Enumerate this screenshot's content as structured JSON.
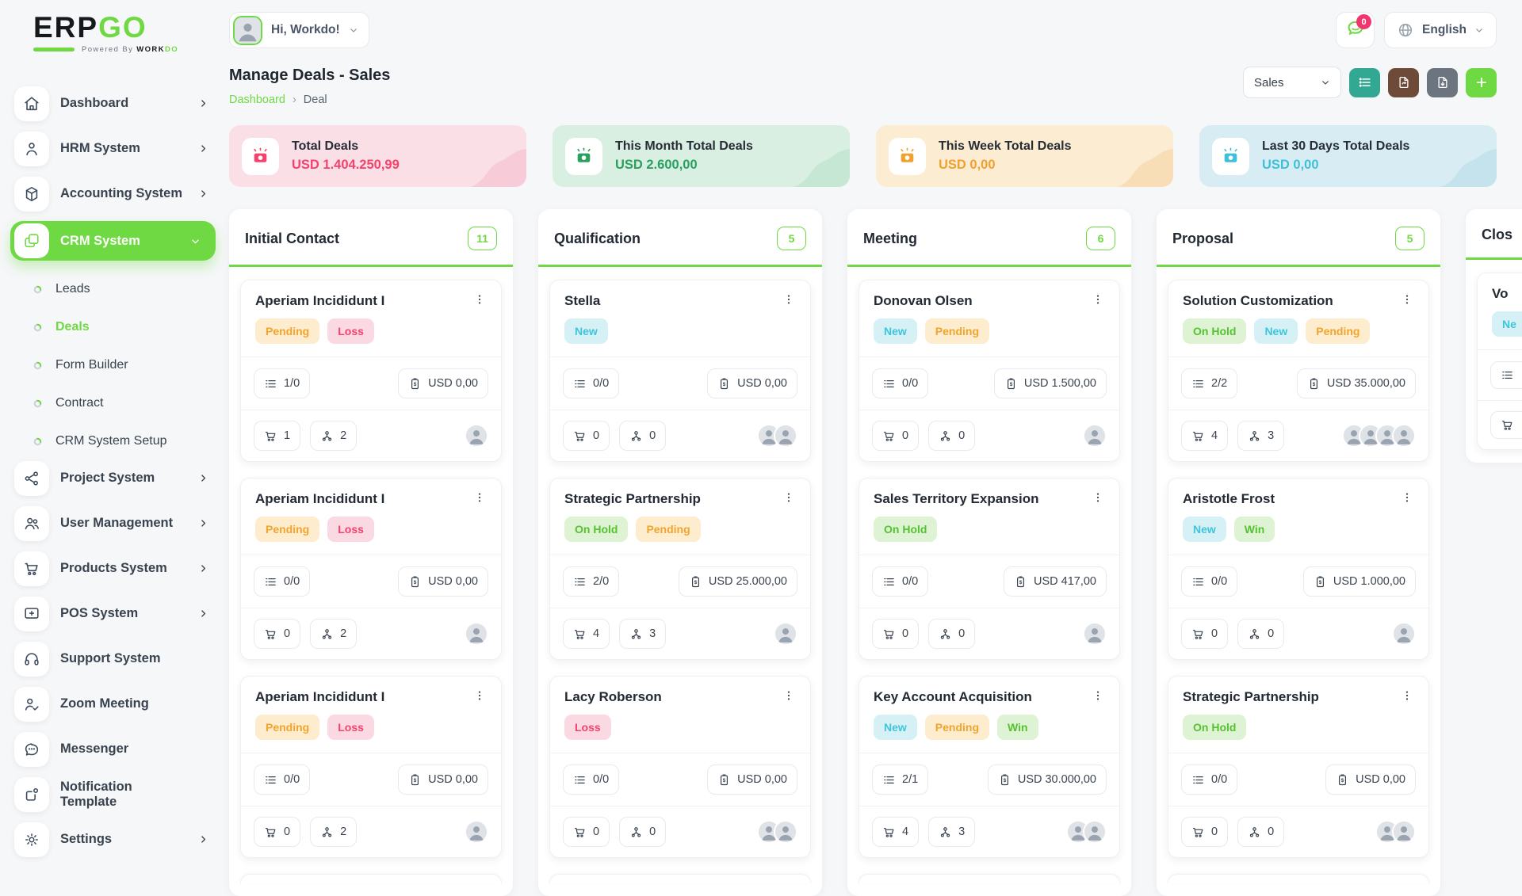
{
  "brand": {
    "name_dark": "ERP",
    "name_green": "GO",
    "tagline_prefix": "Powered By",
    "tagline_dark": "WORK",
    "tagline_green": "DO"
  },
  "topbar": {
    "greeting": "Hi, Workdo!",
    "notification_badge": "0",
    "language": "English"
  },
  "page": {
    "title": "Manage Deals - Sales",
    "breadcrumb": [
      "Dashboard",
      "Deal"
    ],
    "pipeline_select": "Sales"
  },
  "colors": {
    "brand_green": "#6fd943",
    "badge_pink": "#f1356e",
    "toolbar": [
      "#32a791",
      "#6e4a39",
      "#6c7480",
      "#6fd943"
    ]
  },
  "sidebar": {
    "items": [
      {
        "label": "Dashboard",
        "icon": "home-icon",
        "chevron": "right"
      },
      {
        "label": "HRM System",
        "icon": "user-icon",
        "chevron": "right"
      },
      {
        "label": "Accounting System",
        "icon": "cube-icon",
        "chevron": "right"
      },
      {
        "label": "CRM System",
        "icon": "crm-icon",
        "chevron": "down",
        "active": true
      },
      {
        "label": "Leads",
        "type": "sub"
      },
      {
        "label": "Deals",
        "type": "sub",
        "active": true
      },
      {
        "label": "Form Builder",
        "type": "sub"
      },
      {
        "label": "Contract",
        "type": "sub"
      },
      {
        "label": "CRM System Setup",
        "type": "sub"
      },
      {
        "label": "Project System",
        "icon": "share-icon",
        "chevron": "right"
      },
      {
        "label": "User Management",
        "icon": "users-icon",
        "chevron": "right"
      },
      {
        "label": "Products System",
        "icon": "cart-icon",
        "chevron": "right"
      },
      {
        "label": "POS System",
        "icon": "pos-icon",
        "chevron": "right"
      },
      {
        "label": "Support System",
        "icon": "headset-icon"
      },
      {
        "label": "Zoom Meeting",
        "icon": "user-check-icon"
      },
      {
        "label": "Messenger",
        "icon": "chat-icon"
      },
      {
        "label": "Notification Template",
        "icon": "notification-template-icon"
      },
      {
        "label": "Settings",
        "icon": "gear-icon",
        "chevron": "right"
      }
    ]
  },
  "stats": [
    {
      "label": "Total Deals",
      "value": "USD 1.404.250,99",
      "bg": "#fbdfe7",
      "accent": "#f5426c",
      "wave": "#f8cbd8"
    },
    {
      "label": "This Month Total Deals",
      "value": "USD 2.600,00",
      "bg": "#d9efe2",
      "accent": "#29a05f",
      "wave": "#c6e7d4"
    },
    {
      "label": "This Week Total Deals",
      "value": "USD 0,00",
      "bg": "#fcecd2",
      "accent": "#f0a12f",
      "wave": "#f8deb7"
    },
    {
      "label": "Last 30 Days Total Deals",
      "value": "USD 0,00",
      "bg": "#d8edf3",
      "accent": "#3fc0d9",
      "wave": "#c4e3ec"
    }
  ],
  "kanban": {
    "columns": [
      {
        "title": "Initial Contact",
        "count": "11",
        "partial": true,
        "cards": [
          {
            "title": "Aperiam Incididunt I",
            "tags": [
              {
                "label": "Pending",
                "type": "pending"
              },
              {
                "label": "Loss",
                "type": "loss"
              }
            ],
            "tasks": "1/0",
            "amount": "USD 0,00",
            "products": "1",
            "users": "2",
            "avatars": 1
          },
          {
            "title": "Aperiam Incididunt I",
            "tags": [
              {
                "label": "Pending",
                "type": "pending"
              },
              {
                "label": "Loss",
                "type": "loss"
              }
            ],
            "tasks": "0/0",
            "amount": "USD 0,00",
            "products": "0",
            "users": "2",
            "avatars": 1
          },
          {
            "title": "Aperiam Incididunt I",
            "tags": [
              {
                "label": "Pending",
                "type": "pending"
              },
              {
                "label": "Loss",
                "type": "loss"
              }
            ],
            "tasks": "0/0",
            "amount": "USD 0,00",
            "products": "0",
            "users": "2",
            "avatars": 1
          }
        ]
      },
      {
        "title": "Qualification",
        "count": "5",
        "partial": true,
        "cards": [
          {
            "title": "Stella",
            "tags": [
              {
                "label": "New",
                "type": "new"
              }
            ],
            "tasks": "0/0",
            "amount": "USD 0,00",
            "products": "0",
            "users": "0",
            "avatars": 2
          },
          {
            "title": "Strategic Partnership",
            "tags": [
              {
                "label": "On Hold",
                "type": "onhold"
              },
              {
                "label": "Pending",
                "type": "pending"
              }
            ],
            "tasks": "2/0",
            "amount": "USD 25.000,00",
            "products": "4",
            "users": "3",
            "avatars": 1
          },
          {
            "title": "Lacy Roberson",
            "tags": [
              {
                "label": "Loss",
                "type": "loss"
              }
            ],
            "tasks": "0/0",
            "amount": "USD 0,00",
            "products": "0",
            "users": "0",
            "avatars": 2
          }
        ]
      },
      {
        "title": "Meeting",
        "count": "6",
        "partial": true,
        "cards": [
          {
            "title": "Donovan Olsen",
            "tags": [
              {
                "label": "New",
                "type": "new"
              },
              {
                "label": "Pending",
                "type": "pending"
              }
            ],
            "tasks": "0/0",
            "amount": "USD 1.500,00",
            "products": "0",
            "users": "0",
            "avatars": 1
          },
          {
            "title": "Sales Territory Expansion",
            "tags": [
              {
                "label": "On Hold",
                "type": "onhold"
              }
            ],
            "tasks": "0/0",
            "amount": "USD 417,00",
            "products": "0",
            "users": "0",
            "avatars": 1
          },
          {
            "title": "Key Account Acquisition",
            "tags": [
              {
                "label": "New",
                "type": "new"
              },
              {
                "label": "Pending",
                "type": "pending"
              },
              {
                "label": "Win",
                "type": "win"
              }
            ],
            "tasks": "2/1",
            "amount": "USD 30.000,00",
            "products": "4",
            "users": "3",
            "avatars": 2
          }
        ]
      },
      {
        "title": "Proposal",
        "count": "5",
        "partial": true,
        "cards": [
          {
            "title": "Solution Customization",
            "tags": [
              {
                "label": "On Hold",
                "type": "onhold"
              },
              {
                "label": "New",
                "type": "new"
              },
              {
                "label": "Pending",
                "type": "pending"
              }
            ],
            "tasks": "2/2",
            "amount": "USD 35.000,00",
            "products": "4",
            "users": "3",
            "avatars": 4
          },
          {
            "title": "Aristotle Frost",
            "tags": [
              {
                "label": "New",
                "type": "new"
              },
              {
                "label": "Win",
                "type": "win"
              }
            ],
            "tasks": "0/0",
            "amount": "USD 1.000,00",
            "products": "0",
            "users": "0",
            "avatars": 1
          },
          {
            "title": "Strategic Partnership",
            "tags": [
              {
                "label": "On Hold",
                "type": "onhold"
              }
            ],
            "tasks": "0/0",
            "amount": "USD 0,00",
            "products": "0",
            "users": "0",
            "avatars": 2
          }
        ]
      },
      {
        "title": "Clos",
        "count": null,
        "partial": false,
        "cards": [
          {
            "title": "Vo",
            "tags": [
              {
                "label": "Ne",
                "type": "new"
              }
            ],
            "tasks": "",
            "amount": "",
            "products": "",
            "users": "",
            "avatars": 0
          }
        ]
      }
    ]
  }
}
